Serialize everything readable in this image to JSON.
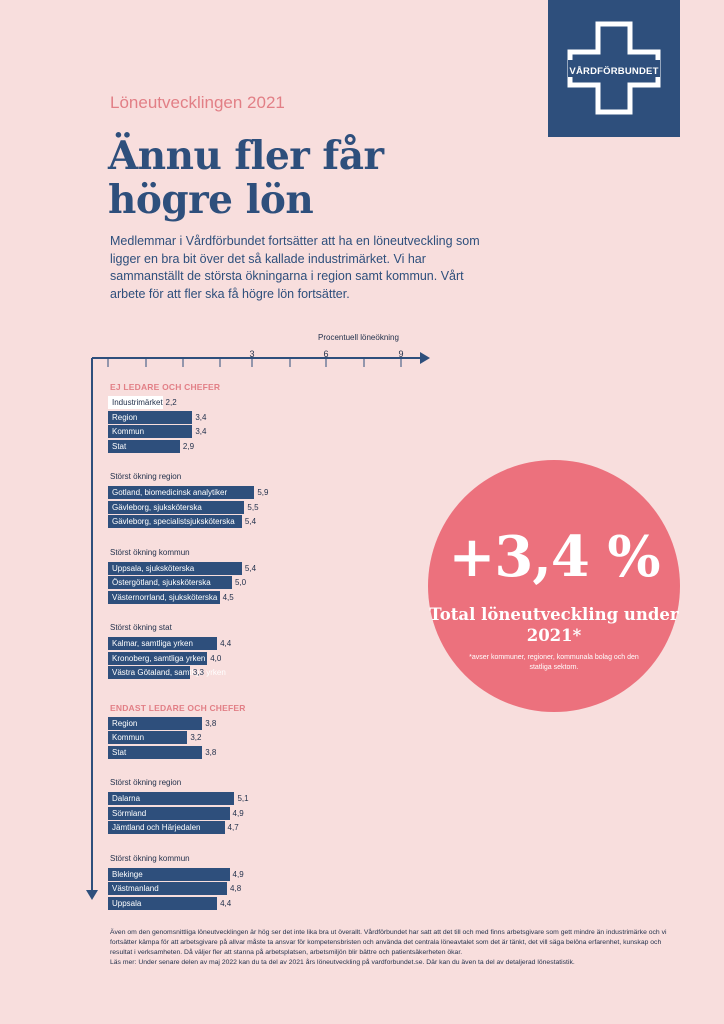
{
  "brand": {
    "name": "VÅRDFÖRBUNDET",
    "colors": {
      "navy": "#2e4f7c",
      "pink_bg": "#f8dedd",
      "coral": "#ec717d",
      "accent_text": "#e27f86"
    }
  },
  "kicker": "Löneutvecklingen 2021",
  "headline_lines": [
    "Ännu fler får",
    "högre lön"
  ],
  "intro": "Medlemmar i Vårdförbundet fortsätter att ha en löneutveckling som ligger en bra bit över det så kallade industrimärket. Vi har sammanställt de största ökningarna i region samt kommun. Vårt arbete för att fler ska få högre lön fortsätter.",
  "chart_data": {
    "type": "bar",
    "orientation": "horizontal",
    "axis_title": "Procentuell löneökning",
    "ticks": [
      "3",
      "6",
      "9"
    ],
    "xlim": [
      0,
      9.6
    ],
    "groups": [
      {
        "heading": "EJ LEDARE OCH CHEFER",
        "sections": [
          {
            "title": "",
            "bars": [
              {
                "label": "Industrimärket",
                "value": 2.2,
                "display": "2,2",
                "highlight": true
              },
              {
                "label": "Region",
                "value": 3.4,
                "display": "3,4"
              },
              {
                "label": "Kommun",
                "value": 3.4,
                "display": "3,4"
              },
              {
                "label": "Stat",
                "value": 2.9,
                "display": "2,9"
              }
            ]
          },
          {
            "title": "Störst ökning region",
            "bars": [
              {
                "label": "Gotland, biomedicinsk analytiker",
                "value": 5.9,
                "display": "5,9"
              },
              {
                "label": "Gävleborg, sjuksköterska",
                "value": 5.5,
                "display": "5,5"
              },
              {
                "label": "Gävleborg, specialistsjuksköterska",
                "value": 5.4,
                "display": "5,4"
              }
            ]
          },
          {
            "title": "Störst ökning kommun",
            "bars": [
              {
                "label": "Uppsala, sjuksköterska",
                "value": 5.4,
                "display": "5,4"
              },
              {
                "label": "Östergötland, sjuksköterska",
                "value": 5.0,
                "display": "5,0"
              },
              {
                "label": "Västernorrland, sjuksköterska",
                "value": 4.5,
                "display": "4,5"
              }
            ]
          },
          {
            "title": "Störst ökning stat",
            "bars": [
              {
                "label": "Kalmar, samtliga yrken",
                "value": 4.4,
                "display": "4,4"
              },
              {
                "label": "Kronoberg, samtliga yrken",
                "value": 4.0,
                "display": "4,0"
              },
              {
                "label": "Västra Götaland, samtliga yrken",
                "value": 3.3,
                "display": "3,3"
              }
            ]
          }
        ]
      },
      {
        "heading": "ENDAST LEDARE OCH CHEFER",
        "sections": [
          {
            "title": "",
            "bars": [
              {
                "label": "Region",
                "value": 3.8,
                "display": "3,8"
              },
              {
                "label": "Kommun",
                "value": 3.2,
                "display": "3,2"
              },
              {
                "label": "Stat",
                "value": 3.8,
                "display": "3,8"
              }
            ]
          },
          {
            "title": "Störst ökning region",
            "bars": [
              {
                "label": "Dalarna",
                "value": 5.1,
                "display": "5,1"
              },
              {
                "label": "Sörmland",
                "value": 4.9,
                "display": "4,9"
              },
              {
                "label": "Jämtland och Härjedalen",
                "value": 4.7,
                "display": "4,7"
              }
            ]
          },
          {
            "title": "Störst ökning kommun",
            "bars": [
              {
                "label": "Blekinge",
                "value": 4.9,
                "display": "4,9"
              },
              {
                "label": "Västmanland",
                "value": 4.8,
                "display": "4,8"
              },
              {
                "label": "Uppsala",
                "value": 4.4,
                "display": "4,4"
              }
            ]
          }
        ]
      }
    ]
  },
  "highlight": {
    "number": "+3,4 %",
    "title": "Total löneutveckling under 2021*",
    "note": "*avser kommuner, regioner, kommunala bolag och den statliga sektorn."
  },
  "footer": {
    "body": "Även om den genomsnittliga löneutvecklingen är hög ser det inte lika bra ut överallt. Vårdförbundet har satt att det till och med finns arbetsgivare som gett mindre än industrimärke och vi fortsätter kämpa för att arbetsgivare på allvar måste ta ansvar för kompetensbristen och använda det centrala löneavtalet som det är tänkt, det vill säga belöna erfarenhet, kunskap och resultat i verksamheten. Då väljer fler att stanna på arbetsplatsen, arbetsmiljön blir bättre och patientsäkerheten ökar.",
    "more": "Läs mer: Under senare delen av maj 2022 kan du ta del av 2021 års löneutveckling på vardforbundet.se. Där kan du även ta del av detaljerad lönestatistik."
  }
}
